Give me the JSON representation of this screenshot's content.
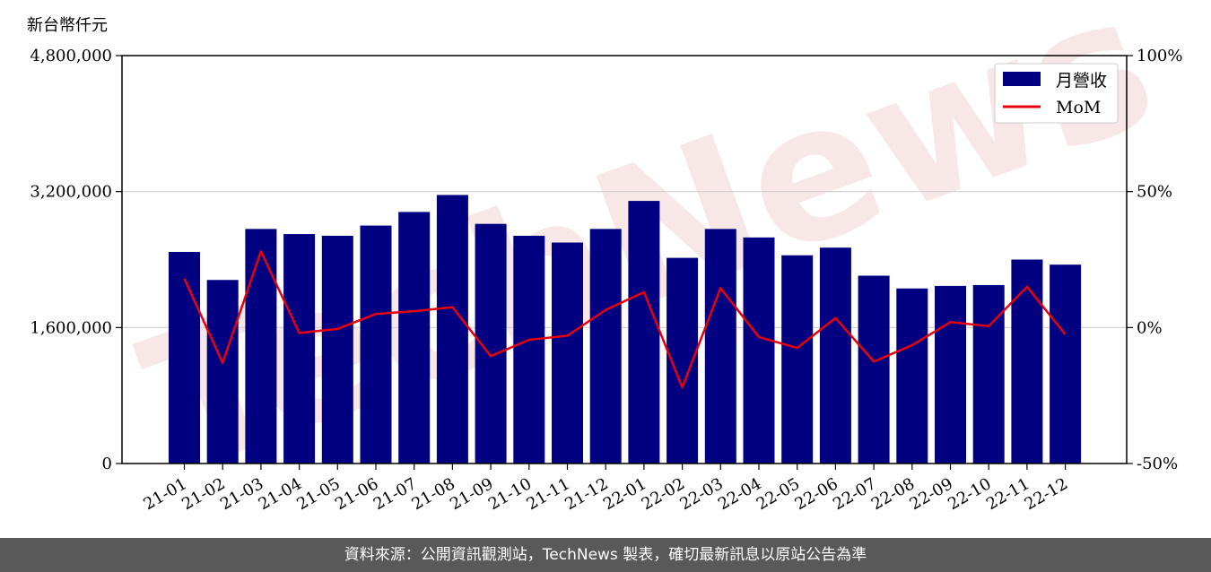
{
  "chart_data": {
    "type": "bar",
    "unit_label": "新台幣仟元",
    "categories": [
      "21-01",
      "21-02",
      "21-03",
      "21-04",
      "21-05",
      "21-06",
      "21-07",
      "21-08",
      "21-09",
      "21-10",
      "21-11",
      "21-12",
      "22-01",
      "22-02",
      "22-03",
      "22-04",
      "22-05",
      "22-06",
      "22-07",
      "22-08",
      "22-09",
      "22-10",
      "22-11",
      "22-12"
    ],
    "series": [
      {
        "name": "月營收",
        "axis": "left",
        "type": "bar",
        "color": "#000080",
        "values": [
          2490000,
          2160000,
          2760000,
          2700000,
          2680000,
          2800000,
          2960000,
          3160000,
          2820000,
          2680000,
          2600000,
          2760000,
          3090000,
          2420000,
          2760000,
          2660000,
          2450000,
          2540000,
          2210000,
          2060000,
          2090000,
          2100000,
          2400000,
          2340000
        ]
      },
      {
        "name": "MoM",
        "axis": "right",
        "type": "line",
        "color": "#e8000b",
        "values": [
          18,
          -13,
          28,
          -2,
          -0.5,
          5,
          6,
          7.5,
          -10.5,
          -4.5,
          -3,
          6.5,
          13,
          -22,
          14.5,
          -3.5,
          -7.5,
          3.5,
          -12.5,
          -6.5,
          2,
          0.5,
          15,
          -2.5
        ]
      }
    ],
    "yleft": {
      "lim": [
        0,
        4800000
      ],
      "ticks": [
        "0",
        "1,600,000",
        "3,200,000",
        "4,800,000"
      ],
      "values": [
        0,
        1600000,
        3200000,
        4800000
      ]
    },
    "yright": {
      "lim": [
        -50,
        100
      ],
      "ticks": [
        "-50%",
        "0%",
        "50%",
        "100%"
      ],
      "values": [
        -50,
        0,
        50,
        100
      ]
    },
    "grid": "horizontal",
    "legend": "top-right"
  },
  "watermark": "TechNews",
  "footer": "資料來源：公開資訊觀測站，TechNews 製表，確切最新訊息以原站公告為準"
}
